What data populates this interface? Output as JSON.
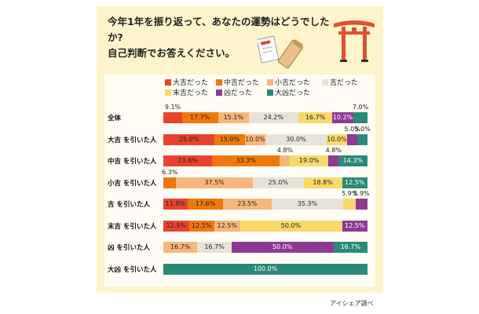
{
  "title": {
    "line1": "今年1年を振り返って、あなたの運勢はどうでしたか?",
    "line2": "自己判断でお答えください。"
  },
  "credit": "アイシェア調べ",
  "legend": [
    {
      "label": "大吉だった",
      "color": "#e8442c"
    },
    {
      "label": "中吉だった",
      "color": "#f0780a"
    },
    {
      "label": "小吉だった",
      "color": "#f7b77a"
    },
    {
      "label": "吉だった",
      "color": "#e6e4d8"
    },
    {
      "label": "末吉だった",
      "color": "#fad96a"
    },
    {
      "label": "凶だった",
      "color": "#8e3a95"
    },
    {
      "label": "大凶だった",
      "color": "#2a8a78"
    }
  ],
  "chart_data": {
    "type": "bar",
    "orientation": "horizontal-stacked-100",
    "series_names": [
      "大吉だった",
      "中吉だった",
      "小吉だった",
      "吉だった",
      "末吉だった",
      "凶だった",
      "大凶だった"
    ],
    "rows": [
      {
        "label": "全体",
        "values": [
          9.1,
          17.7,
          15.1,
          24.2,
          16.7,
          10.2,
          7.0
        ]
      },
      {
        "label": "大吉 を引いた人",
        "values": [
          25.0,
          15.0,
          10.0,
          30.0,
          10.0,
          5.0,
          5.0
        ]
      },
      {
        "label": "中吉 を引いた人",
        "values": [
          23.8,
          33.3,
          4.8,
          0,
          19.0,
          4.8,
          14.3
        ]
      },
      {
        "label": "小吉 を引いた人",
        "values": [
          0,
          6.3,
          37.5,
          25.0,
          18.8,
          0,
          12.5
        ]
      },
      {
        "label": "吉 を引いた人",
        "values": [
          11.8,
          17.6,
          23.5,
          35.3,
          5.9,
          5.9,
          0
        ]
      },
      {
        "label": "末吉 を引いた人",
        "values": [
          12.5,
          12.5,
          12.5,
          0,
          50.0,
          12.5,
          0
        ]
      },
      {
        "label": "凶 を引いた人",
        "values": [
          0,
          0,
          16.7,
          16.7,
          0,
          50.0,
          16.7
        ]
      },
      {
        "label": "大凶 を引いた人",
        "values": [
          0,
          0,
          0,
          0,
          0,
          0,
          100.0
        ]
      }
    ],
    "value_labels": [
      [
        "9.1%",
        "17.7%",
        "15.1%",
        "24.2%",
        "16.7%",
        "10.2%",
        "7.0%"
      ],
      [
        "25.0%",
        "15.0%",
        "10.0%",
        "30.0%",
        "10.0%",
        "5.0%",
        "5.0%"
      ],
      [
        "23.8%",
        "33.3%",
        "4.8%",
        "",
        "19.0%",
        "4.8%",
        "14.3%"
      ],
      [
        "",
        "6.3%",
        "37.5%",
        "25.0%",
        "18.8%",
        "",
        "12.5%"
      ],
      [
        "11.8%",
        "17.6%",
        "23.5%",
        "35.3%",
        "5.9%",
        "5.9%",
        ""
      ],
      [
        "12.5%",
        "12.5%",
        "12.5%",
        "",
        "50.0%",
        "12.5%",
        ""
      ],
      [
        "",
        "",
        "16.7%",
        "16.7%",
        "",
        "50.0%",
        "16.7%"
      ],
      [
        "",
        "",
        "",
        "",
        "",
        "",
        "100.0%"
      ]
    ],
    "xlim": [
      0,
      100
    ]
  }
}
